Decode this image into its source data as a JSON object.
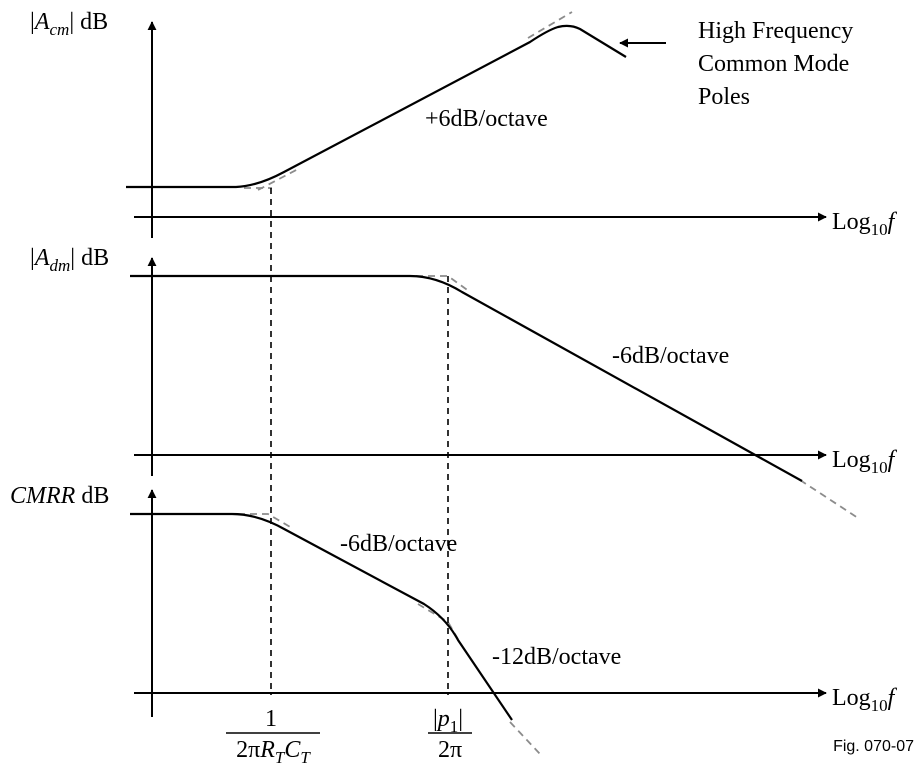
{
  "plots": {
    "acm": {
      "ylabel": {
        "var": "A",
        "sub": "cm",
        "unit": "dB"
      },
      "slope_label": "+6dB/octave",
      "xlabel": {
        "base": "Log",
        "sub": "10",
        "var": "f"
      },
      "annotation": [
        "High Frequency",
        "Common Mode",
        "Poles"
      ]
    },
    "adm": {
      "ylabel": {
        "var": "A",
        "sub": "dm",
        "unit": "dB"
      },
      "slope_label": "-6dB/octave",
      "xlabel": {
        "base": "Log",
        "sub": "10",
        "var": "f"
      }
    },
    "cmrr": {
      "ylabel": {
        "var": "CMRR",
        "unit": "dB"
      },
      "slope1_label": "-6dB/octave",
      "slope2_label": "-12dB/octave",
      "xlabel": {
        "base": "Log",
        "sub": "10",
        "var": "f"
      }
    }
  },
  "frequency_markers": {
    "left": {
      "num": "1",
      "den_prefix": "2π",
      "r": "R",
      "r_sub": "T",
      "c": "C",
      "c_sub": "T"
    },
    "right": {
      "num_var": "p",
      "num_sub": "1",
      "den": "2π"
    }
  },
  "figure_label": "Fig. 070-07"
}
